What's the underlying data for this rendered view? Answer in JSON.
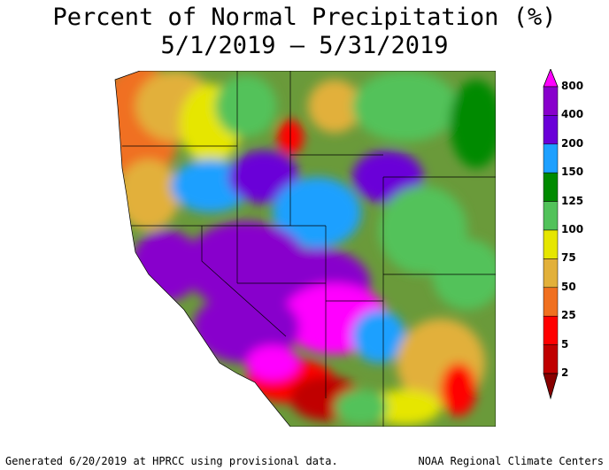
{
  "title": {
    "line1": "Percent of Normal Precipitation (%)",
    "line2": "5/1/2019 – 5/31/2019"
  },
  "legend": {
    "labels": [
      "800",
      "400",
      "200",
      "150",
      "125",
      "100",
      "75",
      "50",
      "25",
      "5",
      "2"
    ],
    "colors": [
      "#ff00ff",
      "#8800cc",
      "#6a00d8",
      "#1ea0ff",
      "#008a00",
      "#52c25a",
      "#e6e600",
      "#e2b03a",
      "#f07020",
      "#ff0000",
      "#c00000",
      "#880000"
    ]
  },
  "footer": {
    "left": "Generated 6/20/2019 at HPRCC using provisional data.",
    "right": "NOAA Regional Climate Centers"
  }
}
